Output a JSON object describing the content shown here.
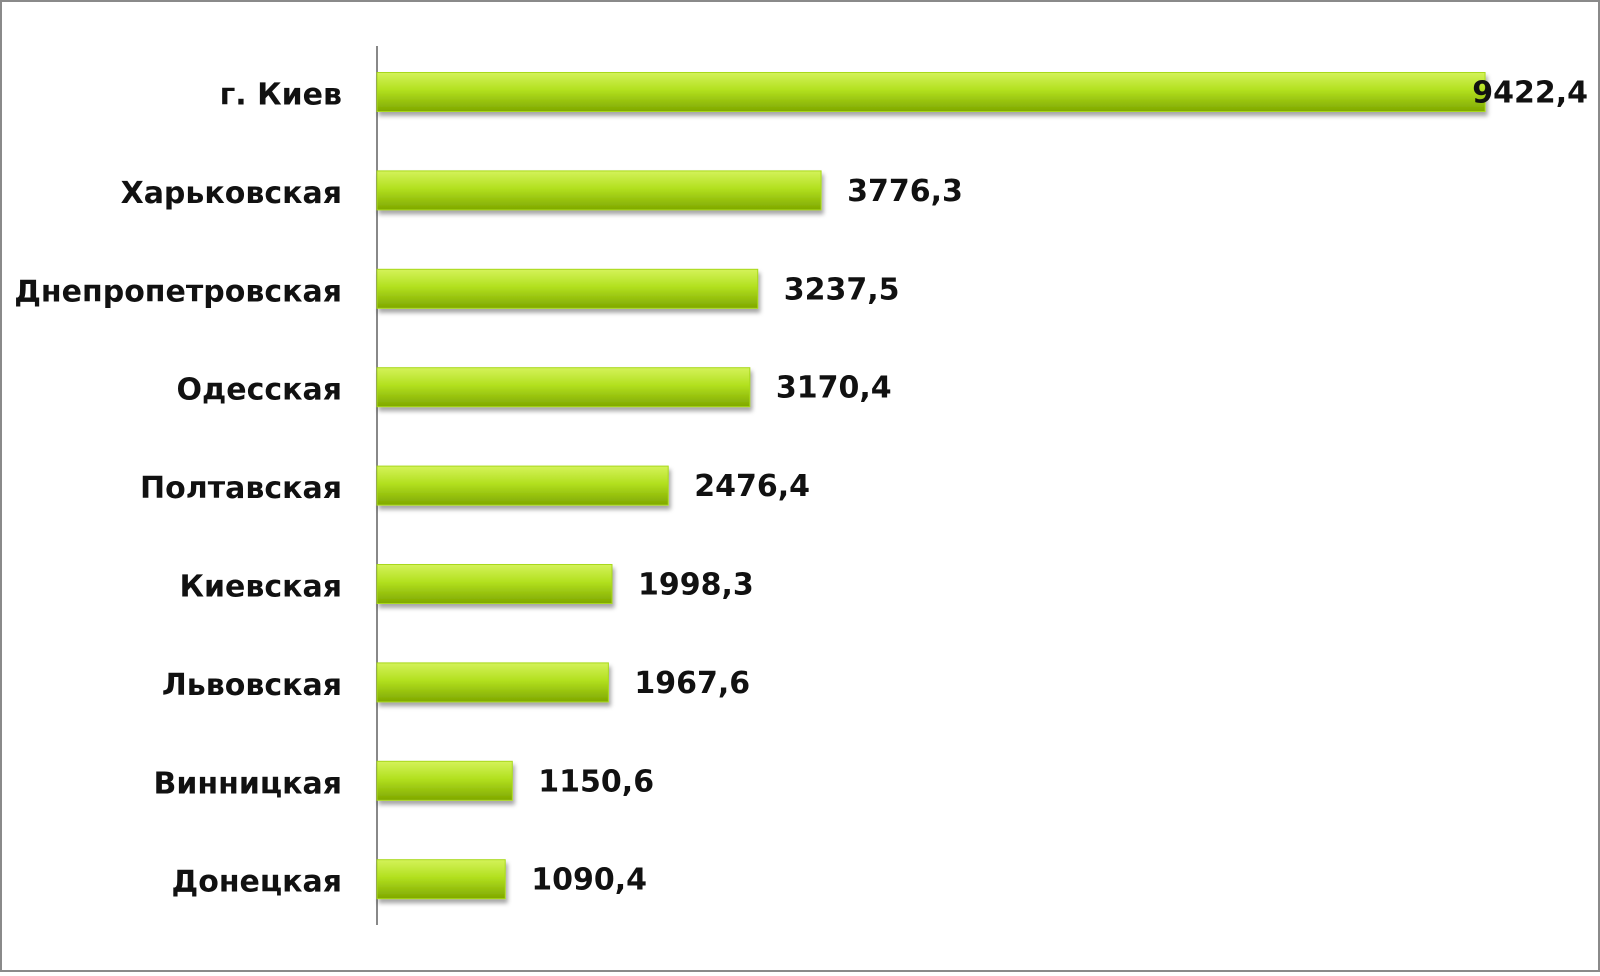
{
  "chart_data": {
    "type": "bar",
    "orientation": "horizontal",
    "categories": [
      "г. Киев",
      "Харьковская",
      "Днепропетровская",
      "Одесская",
      "Полтавская",
      "Киевская",
      "Львовская",
      "Винницкая",
      "Донецкая"
    ],
    "values": [
      9422.4,
      3776.3,
      3237.5,
      3170.4,
      2476.4,
      1998.3,
      1967.6,
      1150.6,
      1090.4
    ],
    "value_labels": [
      "9422,4",
      "3776,3",
      "3237,5",
      "3170,4",
      "2476,4",
      "1998,3",
      "1967,6",
      "1150,6",
      "1090,4"
    ],
    "color": "#a8d81a"
  }
}
